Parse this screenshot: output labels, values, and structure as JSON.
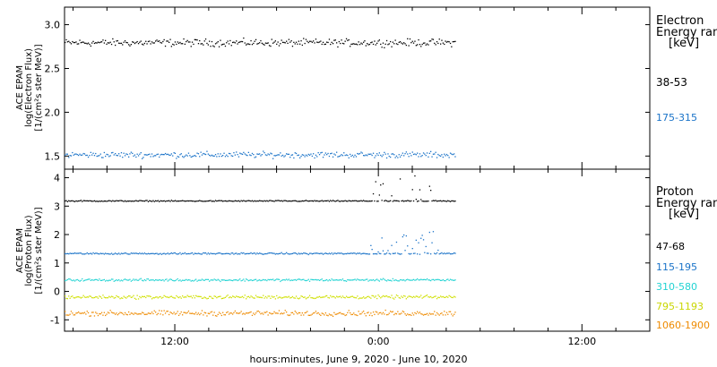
{
  "chart_data": {
    "type": "scatter",
    "xlabel": "hours:minutes, June  9, 2020 - June 10, 2020",
    "x_ticks": [
      "12:00",
      "0:00",
      "12:00"
    ],
    "x_tick_hours": [
      12,
      24,
      36
    ],
    "xlim_hours": [
      5.5,
      40
    ],
    "data_end_hour": 28.5,
    "panels": [
      {
        "ylabel_lines": [
          "ACE EPAM",
          "log(Electron Flux)",
          "[1/(cm²s ster MeV)]"
        ],
        "ylim": [
          1.35,
          3.2
        ],
        "y_ticks": [
          "1.5",
          "2.0",
          "2.5",
          "3.0"
        ],
        "y_tick_values": [
          1.5,
          2.0,
          2.5,
          3.0
        ],
        "legend_title_lines": [
          "Electron",
          "Energy ranges",
          "[keV]"
        ],
        "series": [
          {
            "name": "38-53",
            "color": "#000000",
            "level": 2.8,
            "spread": 0.06
          },
          {
            "name": "175-315",
            "color": "#1a73c8",
            "level": 1.52,
            "spread": 0.05
          }
        ]
      },
      {
        "ylabel_lines": [
          "ACE EPAM",
          "log(Proton Flux)",
          "[1/(cm²s ster MeV)]"
        ],
        "ylim": [
          -1.4,
          4.3
        ],
        "y_ticks": [
          "-1",
          "0",
          "1",
          "2",
          "3",
          "4"
        ],
        "y_tick_values": [
          -1,
          0,
          1,
          2,
          3,
          4
        ],
        "legend_title_lines": [
          "Proton",
          "Energy ranges",
          "[keV]"
        ],
        "series": [
          {
            "name": "47-68",
            "color": "#000000",
            "level": 3.2,
            "spread": 0.03
          },
          {
            "name": "115-195",
            "color": "#1a73c8",
            "level": 1.35,
            "spread": 0.04
          },
          {
            "name": "310-580",
            "color": "#22d3d3",
            "level": 0.42,
            "spread": 0.06
          },
          {
            "name": "795-1193",
            "color": "#cfe000",
            "level": -0.18,
            "spread": 0.09
          },
          {
            "name": "1060-1900",
            "color": "#ee8a00",
            "level": -0.75,
            "spread": 0.13
          }
        ]
      }
    ]
  }
}
